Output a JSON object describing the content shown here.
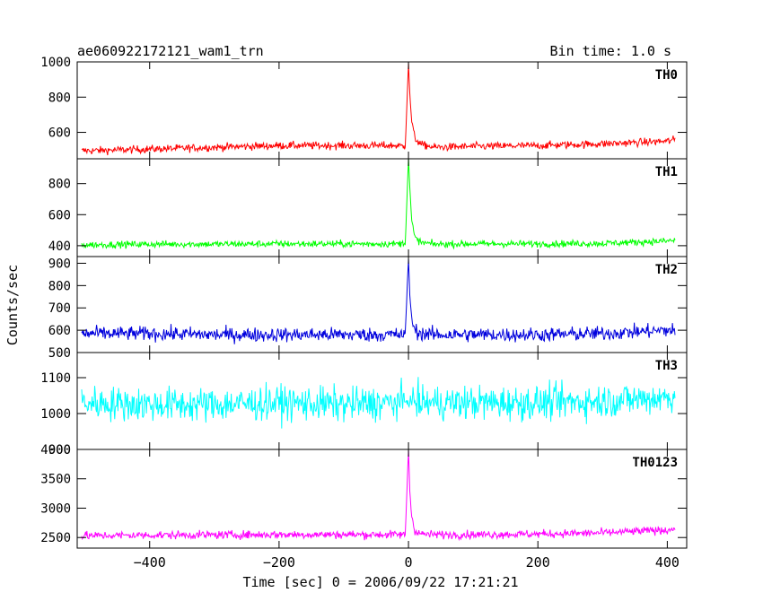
{
  "header": {
    "title": "ae060922172121_wam1_trn",
    "bin_time": "Bin time: 1.0 s"
  },
  "y_axis_label": "Counts/sec",
  "x_axis_label": "Time [sec] 0 = 2006/09/22 17:21:21",
  "chart_data": [
    {
      "type": "line",
      "name": "TH0",
      "color": "#ff0000",
      "xlim": [
        -512,
        430
      ],
      "ylim": [
        450,
        1000
      ],
      "yticks": [
        600,
        800,
        1000
      ],
      "ytick_labels": [
        "600",
        "800",
        "1000"
      ],
      "x": [
        -505,
        -400,
        -300,
        -200,
        -100,
        -20,
        -5,
        0,
        2,
        5,
        10,
        20,
        40,
        100,
        200,
        300,
        400,
        412
      ],
      "y": [
        495,
        505,
        515,
        525,
        525,
        525,
        520,
        990,
        820,
        660,
        565,
        530,
        515,
        520,
        525,
        535,
        550,
        560
      ]
    },
    {
      "type": "line",
      "name": "TH1",
      "color": "#00ff00",
      "xlim": [
        -512,
        430
      ],
      "ylim": [
        330,
        960
      ],
      "yticks": [
        400,
        600,
        800
      ],
      "ytick_labels": [
        "400",
        "600",
        "800"
      ],
      "x": [
        -505,
        -400,
        -300,
        -200,
        -100,
        -20,
        -5,
        0,
        2,
        5,
        10,
        20,
        40,
        100,
        200,
        300,
        400,
        412
      ],
      "y": [
        405,
        410,
        410,
        412,
        412,
        412,
        415,
        960,
        780,
        560,
        450,
        420,
        410,
        412,
        412,
        415,
        430,
        435
      ]
    },
    {
      "type": "line",
      "name": "TH2",
      "color": "#0000dd",
      "xlim": [
        -512,
        430
      ],
      "ylim": [
        500,
        930
      ],
      "yticks": [
        500,
        600,
        700,
        800,
        900
      ],
      "ytick_labels": [
        "500",
        "600",
        "700",
        "800",
        "900"
      ],
      "x": [
        -505,
        -400,
        -300,
        -200,
        -100,
        -20,
        -5,
        0,
        2,
        5,
        10,
        20,
        40,
        100,
        200,
        300,
        400,
        412
      ],
      "y": [
        585,
        585,
        580,
        580,
        580,
        580,
        580,
        925,
        760,
        650,
        600,
        585,
        580,
        580,
        580,
        585,
        600,
        600
      ]
    },
    {
      "type": "line",
      "name": "TH3",
      "color": "#00ffff",
      "xlim": [
        -512,
        430
      ],
      "ylim": [
        900,
        1170
      ],
      "yticks": [
        900,
        1000,
        1100
      ],
      "ytick_labels": [
        "900",
        "1000",
        "1100"
      ],
      "x": [
        -505,
        -400,
        -300,
        -200,
        -100,
        -20,
        0,
        20,
        100,
        200,
        300,
        400,
        412
      ],
      "y": [
        1030,
        1025,
        1025,
        1030,
        1025,
        1030,
        1035,
        1030,
        1030,
        1030,
        1035,
        1045,
        1050
      ]
    },
    {
      "type": "line",
      "name": "TH0123",
      "color": "#ff00ff",
      "xlim": [
        -512,
        430
      ],
      "ylim": [
        2320,
        4000
      ],
      "yticks": [
        2500,
        3000,
        3500,
        4000
      ],
      "ytick_labels": [
        "2500",
        "3000",
        "3500",
        "4000"
      ],
      "x": [
        -505,
        -400,
        -300,
        -200,
        -100,
        -20,
        -5,
        0,
        2,
        5,
        10,
        20,
        40,
        100,
        200,
        300,
        400,
        412
      ],
      "y": [
        2530,
        2540,
        2545,
        2550,
        2550,
        2550,
        2545,
        3990,
        3300,
        2850,
        2620,
        2560,
        2550,
        2550,
        2560,
        2580,
        2630,
        2650
      ]
    }
  ],
  "x_axis": {
    "ticks": [
      -400,
      -200,
      0,
      200,
      400
    ],
    "tick_labels": [
      "−400",
      "−200",
      "0",
      "200",
      "400"
    ]
  }
}
